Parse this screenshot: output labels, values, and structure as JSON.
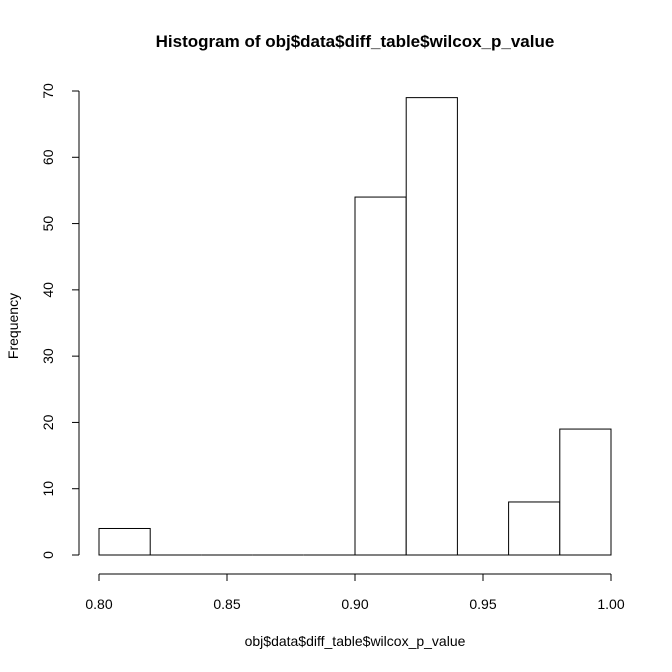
{
  "chart_data": {
    "type": "bar",
    "title": "Histogram of obj$data$diff_table$wilcox_p_value",
    "xlabel": "obj$data$diff_table$wilcox_p_value",
    "ylabel": "Frequency",
    "bins": [
      {
        "x0": 0.8,
        "x1": 0.82,
        "count": 4
      },
      {
        "x0": 0.82,
        "x1": 0.84,
        "count": 0
      },
      {
        "x0": 0.84,
        "x1": 0.86,
        "count": 0
      },
      {
        "x0": 0.86,
        "x1": 0.88,
        "count": 0
      },
      {
        "x0": 0.88,
        "x1": 0.9,
        "count": 0
      },
      {
        "x0": 0.9,
        "x1": 0.92,
        "count": 54
      },
      {
        "x0": 0.92,
        "x1": 0.94,
        "count": 69
      },
      {
        "x0": 0.94,
        "x1": 0.96,
        "count": 0
      },
      {
        "x0": 0.96,
        "x1": 0.98,
        "count": 8
      },
      {
        "x0": 0.98,
        "x1": 1.0,
        "count": 19
      }
    ],
    "xlim": [
      0.8,
      1.0
    ],
    "ylim": [
      0,
      70
    ],
    "xticks": [
      0.8,
      0.85,
      0.9,
      0.95,
      1.0
    ],
    "xtick_labels": [
      "0.80",
      "0.85",
      "0.90",
      "0.95",
      "1.00"
    ],
    "yticks": [
      0,
      10,
      20,
      30,
      40,
      50,
      60,
      70
    ],
    "ytick_labels": [
      "0",
      "10",
      "20",
      "30",
      "40",
      "50",
      "60",
      "70"
    ],
    "grid": false,
    "legend": "none"
  }
}
